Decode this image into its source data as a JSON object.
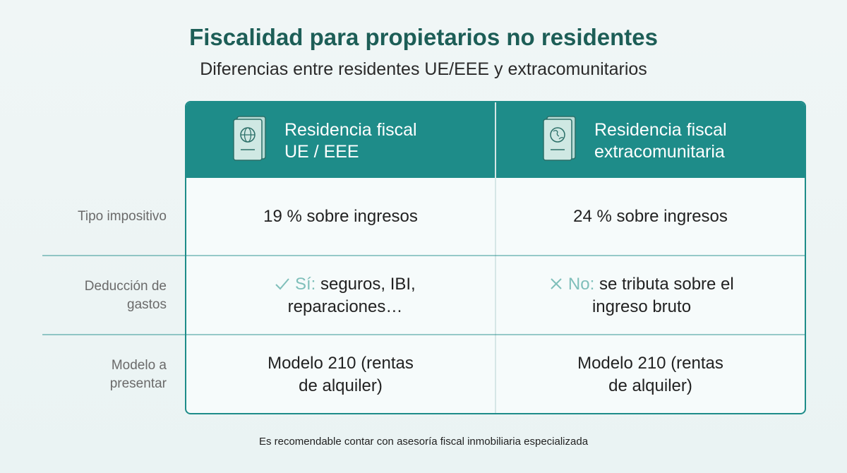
{
  "header": {
    "title": "Fiscalidad para propietarios no residentes",
    "subtitle": "Diferencias entre residentes UE/EEE y extracomunitarios"
  },
  "table": {
    "columns": [
      {
        "lines": [
          "Residencia fiscal",
          "UE / EEE"
        ]
      },
      {
        "lines": [
          "Residencia fiscal",
          "extracomunitaria"
        ]
      }
    ],
    "rows": [
      {
        "label": "Tipo impositivo",
        "cells": [
          {
            "text": "19 % sobre ingresos"
          },
          {
            "text": "24 % sobre ingresos"
          }
        ]
      },
      {
        "label": "Deducción de gastos",
        "cells": [
          {
            "prefix": "Sí:",
            "text": "seguros, IBI, reparaciones…"
          },
          {
            "prefix": "No:",
            "text": "se tributa sobre el ingreso bruto"
          }
        ]
      },
      {
        "label": "Modelo a presentar",
        "cells": [
          {
            "text": "Modelo 210 (rentas de alquiler)"
          },
          {
            "text": "Modelo 210 (rentas de alquiler)"
          }
        ]
      }
    ]
  },
  "footnote": "Es recomendable contar con asesoría fiscal inmobiliaria especializada"
}
